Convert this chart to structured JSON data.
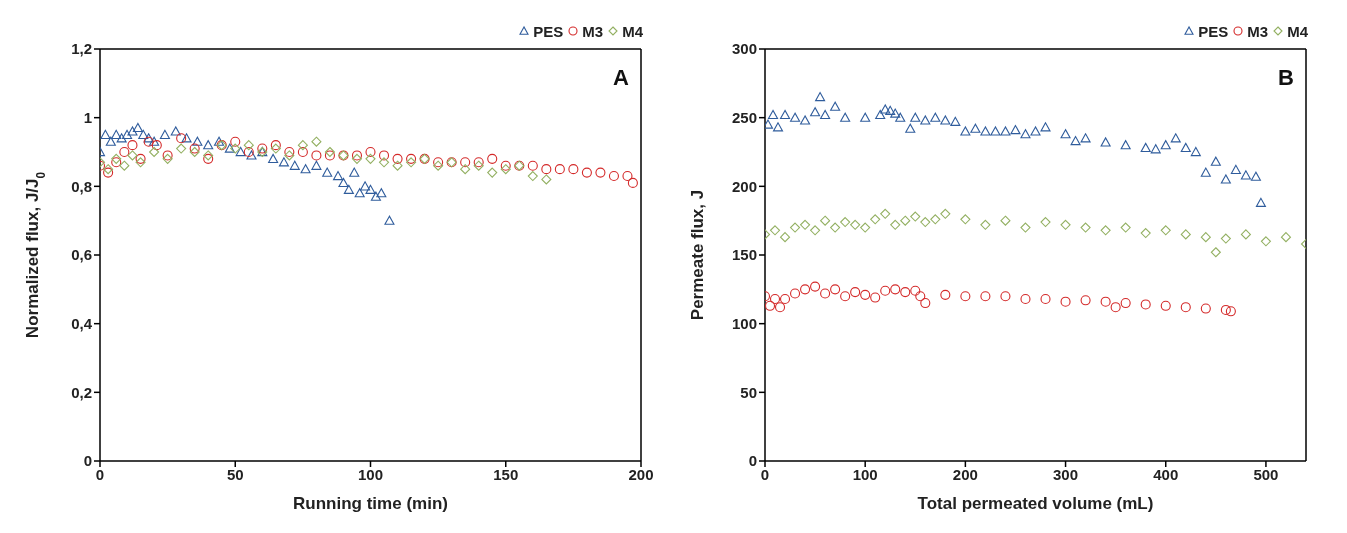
{
  "chart_data": [
    {
      "type": "scatter",
      "xlabel": "Running time (min)",
      "ylabel": "Normalized flux, J/J$_{0}$",
      "annotations": [
        "A"
      ],
      "xlim": [
        0,
        200
      ],
      "xticks": [
        0,
        50,
        100,
        150,
        200
      ],
      "ylim": [
        0,
        1.2
      ],
      "yticks": [
        0,
        {
          "value": 0.2,
          "label": "0,2"
        },
        {
          "value": 0.4,
          "label": "0,4"
        },
        {
          "value": 0.6,
          "label": "0,6"
        },
        {
          "value": 0.8,
          "label": "0,8"
        },
        1,
        {
          "value": 1.2,
          "label": "1,2"
        }
      ],
      "legend": "top right",
      "series": [
        {
          "name": "PES",
          "color": "#2f5c9c",
          "marker": "triangle",
          "x": [
            0,
            2,
            4,
            6,
            8,
            10,
            12,
            14,
            16,
            18,
            20,
            24,
            28,
            32,
            36,
            40,
            44,
            48,
            52,
            56,
            60,
            64,
            68,
            72,
            76,
            80,
            84,
            88,
            90,
            92,
            94,
            96,
            98,
            100,
            102,
            104,
            107
          ],
          "values": [
            0.9,
            0.95,
            0.93,
            0.95,
            0.94,
            0.95,
            0.96,
            0.97,
            0.95,
            0.94,
            0.93,
            0.95,
            0.96,
            0.94,
            0.93,
            0.92,
            0.93,
            0.91,
            0.9,
            0.89,
            0.9,
            0.88,
            0.87,
            0.86,
            0.85,
            0.86,
            0.84,
            0.83,
            0.81,
            0.79,
            0.84,
            0.78,
            0.8,
            0.79,
            0.77,
            0.78,
            0.7
          ]
        },
        {
          "name": "M3",
          "color": "#d42a2a",
          "marker": "circle",
          "x": [
            0,
            3,
            6,
            9,
            12,
            15,
            18,
            21,
            25,
            30,
            35,
            40,
            45,
            50,
            55,
            60,
            65,
            70,
            75,
            80,
            85,
            90,
            95,
            100,
            105,
            110,
            115,
            120,
            125,
            130,
            135,
            140,
            145,
            150,
            155,
            160,
            165,
            170,
            175,
            180,
            185,
            190,
            195,
            197
          ],
          "values": [
            0.86,
            0.84,
            0.87,
            0.9,
            0.92,
            0.88,
            0.93,
            0.92,
            0.89,
            0.94,
            0.91,
            0.88,
            0.92,
            0.93,
            0.9,
            0.91,
            0.92,
            0.9,
            0.9,
            0.89,
            0.89,
            0.89,
            0.89,
            0.9,
            0.89,
            0.88,
            0.88,
            0.88,
            0.87,
            0.87,
            0.87,
            0.87,
            0.88,
            0.86,
            0.86,
            0.86,
            0.85,
            0.85,
            0.85,
            0.84,
            0.84,
            0.83,
            0.83,
            0.81
          ]
        },
        {
          "name": "M4",
          "color": "#93b062",
          "marker": "diamond",
          "x": [
            0,
            3,
            6,
            9,
            12,
            15,
            20,
            25,
            30,
            35,
            40,
            45,
            50,
            55,
            60,
            65,
            70,
            75,
            80,
            85,
            90,
            95,
            100,
            105,
            110,
            115,
            120,
            125,
            130,
            135,
            140,
            145,
            150,
            155,
            160,
            165
          ],
          "values": [
            0.87,
            0.85,
            0.88,
            0.86,
            0.89,
            0.87,
            0.9,
            0.88,
            0.91,
            0.9,
            0.89,
            0.92,
            0.91,
            0.92,
            0.9,
            0.91,
            0.89,
            0.92,
            0.93,
            0.9,
            0.89,
            0.88,
            0.88,
            0.87,
            0.86,
            0.87,
            0.88,
            0.86,
            0.87,
            0.85,
            0.86,
            0.84,
            0.85,
            0.86,
            0.83,
            0.82
          ]
        }
      ]
    },
    {
      "type": "scatter",
      "xlabel": "Total permeated volume (mL)",
      "ylabel": "Permeate flux, J",
      "annotations": [
        "B"
      ],
      "xlim": [
        0,
        540
      ],
      "xticks": [
        0,
        100,
        200,
        300,
        400,
        500
      ],
      "ylim": [
        0,
        300
      ],
      "yticks": [
        0,
        50,
        100,
        150,
        200,
        250,
        300
      ],
      "legend": "top right",
      "series": [
        {
          "name": "PES",
          "color": "#2f5c9c",
          "marker": "triangle",
          "x": [
            3,
            8,
            13,
            20,
            30,
            40,
            50,
            55,
            60,
            70,
            80,
            100,
            115,
            120,
            125,
            130,
            135,
            145,
            150,
            160,
            170,
            180,
            190,
            200,
            210,
            220,
            230,
            240,
            250,
            260,
            270,
            280,
            300,
            310,
            320,
            340,
            360,
            380,
            390,
            400,
            410,
            420,
            430,
            440,
            450,
            460,
            470,
            480,
            490,
            495
          ],
          "values": [
            245,
            252,
            243,
            252,
            250,
            248,
            254,
            265,
            252,
            258,
            250,
            250,
            252,
            256,
            255,
            253,
            250,
            242,
            250,
            248,
            250,
            248,
            247,
            240,
            242,
            240,
            240,
            240,
            241,
            238,
            240,
            243,
            238,
            233,
            235,
            232,
            230,
            228,
            227,
            230,
            235,
            228,
            225,
            210,
            218,
            205,
            212,
            208,
            207,
            188
          ]
        },
        {
          "name": "M3",
          "color": "#d42a2a",
          "marker": "circle",
          "x": [
            0,
            5,
            10,
            15,
            20,
            30,
            40,
            50,
            60,
            70,
            80,
            90,
            100,
            110,
            120,
            130,
            140,
            150,
            155,
            160,
            180,
            200,
            220,
            240,
            260,
            280,
            300,
            320,
            340,
            350,
            360,
            380,
            400,
            420,
            440,
            460,
            465
          ],
          "values": [
            120,
            113,
            118,
            112,
            118,
            122,
            125,
            127,
            122,
            125,
            120,
            123,
            121,
            119,
            124,
            125,
            123,
            124,
            120,
            115,
            121,
            120,
            120,
            120,
            118,
            118,
            116,
            117,
            116,
            112,
            115,
            114,
            113,
            112,
            111,
            110,
            109
          ]
        },
        {
          "name": "M4",
          "color": "#93b062",
          "marker": "diamond",
          "x": [
            0,
            10,
            20,
            30,
            40,
            50,
            60,
            70,
            80,
            90,
            100,
            110,
            120,
            130,
            140,
            150,
            160,
            170,
            180,
            200,
            220,
            240,
            260,
            280,
            300,
            320,
            340,
            360,
            380,
            400,
            420,
            440,
            450,
            460,
            480,
            500,
            520,
            540
          ],
          "values": [
            165,
            168,
            163,
            170,
            172,
            168,
            175,
            170,
            174,
            172,
            170,
            176,
            180,
            172,
            175,
            178,
            174,
            176,
            180,
            176,
            172,
            175,
            170,
            174,
            172,
            170,
            168,
            170,
            166,
            168,
            165,
            163,
            152,
            162,
            165,
            160,
            163,
            158
          ]
        }
      ]
    }
  ]
}
